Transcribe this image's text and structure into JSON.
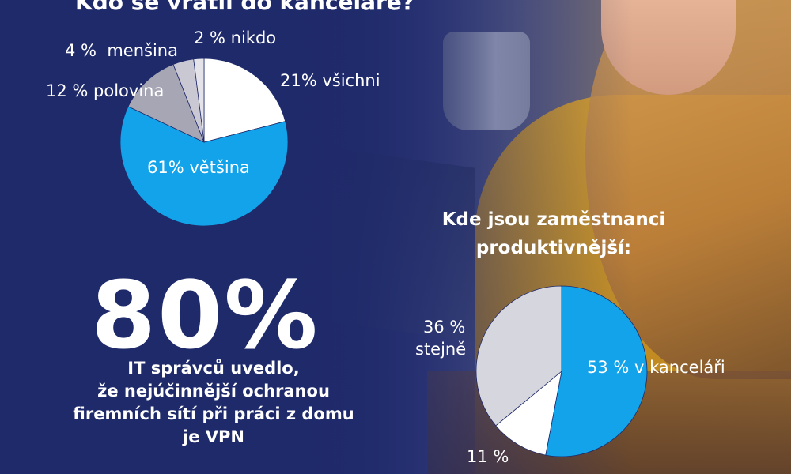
{
  "chart_data": [
    {
      "type": "pie",
      "title": "Kdo se vrátil do kanceláře?",
      "slices": [
        {
          "label": "21% všichni",
          "value": 21,
          "color": "#ffffff"
        },
        {
          "label": "61% většina",
          "value": 61,
          "color": "#12a3ea"
        },
        {
          "label": "12 % polovina",
          "value": 12,
          "color": "#a7a6b5"
        },
        {
          "label": "4 %  menšina",
          "value": 4,
          "color": "#c9c8d3"
        },
        {
          "label": "2 % nikdo",
          "value": 2,
          "color": "#e4e3ea"
        }
      ]
    },
    {
      "type": "pie",
      "title_lines": [
        "Kde jsou zaměstnanci",
        "produktivnější:"
      ],
      "slices": [
        {
          "label": "53 % v kanceláři",
          "value": 53,
          "color": "#12a3ea"
        },
        {
          "label": "11 %",
          "value": 11,
          "color": "#ffffff"
        },
        {
          "label_lines": [
            "36 %",
            "stejně"
          ],
          "value": 36,
          "color": "#d6d6de"
        }
      ]
    }
  ],
  "stat": {
    "value": "80%",
    "lines": [
      "IT správců uvedlo,",
      "že nejúčinnější ochranou",
      "firemních sítí při práci z domu",
      "je VPN"
    ]
  },
  "colors": {
    "background": "#1f2a6a",
    "accent": "#12a3ea"
  }
}
